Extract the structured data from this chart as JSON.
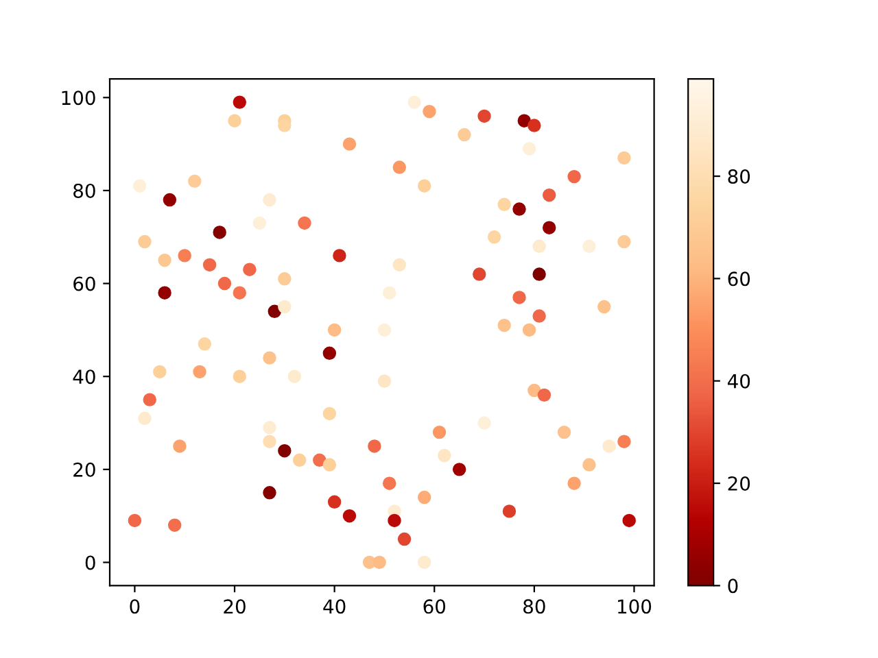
{
  "chart_data": {
    "type": "scatter",
    "marker": "circle",
    "x": [
      21,
      20,
      30,
      30,
      43,
      56,
      59,
      70,
      78,
      80,
      66,
      79,
      98,
      1,
      12,
      7,
      27,
      25,
      34,
      17,
      2,
      6,
      10,
      41,
      15,
      23,
      18,
      21,
      6,
      30,
      28,
      30,
      40,
      53,
      58,
      88,
      83,
      74,
      77,
      83,
      72,
      81,
      91,
      98,
      53,
      69,
      81,
      51,
      77,
      94,
      81,
      50,
      74,
      79,
      39,
      14,
      27,
      5,
      13,
      21,
      32,
      3,
      2,
      39,
      27,
      27,
      9,
      30,
      33,
      37,
      39,
      48,
      27,
      40,
      43,
      0,
      8,
      47,
      49,
      50,
      80,
      82,
      70,
      61,
      86,
      62,
      95,
      98,
      91,
      65,
      51,
      88,
      58,
      52,
      52,
      75,
      99,
      54,
      58
    ],
    "values": [
      99,
      95,
      95,
      94,
      90,
      99,
      97,
      96,
      95,
      94,
      92,
      89,
      87,
      81,
      82,
      78,
      78,
      73,
      73,
      71,
      69,
      65,
      66,
      66,
      64,
      63,
      60,
      58,
      58,
      61,
      54,
      55,
      50,
      85,
      81,
      83,
      79,
      77,
      76,
      72,
      70,
      68,
      68,
      69,
      64,
      62,
      62,
      58,
      57,
      55,
      53,
      50,
      51,
      50,
      45,
      47,
      44,
      41,
      41,
      40,
      40,
      35,
      31,
      32,
      29,
      26,
      25,
      24,
      22,
      22,
      21,
      25,
      15,
      13,
      10,
      9,
      8,
      0,
      0,
      39,
      37,
      36,
      30,
      28,
      28,
      23,
      25,
      26,
      21,
      20,
      17,
      17,
      14,
      11,
      9,
      11,
      9,
      5,
      0
    ],
    "cvalues": [
      15,
      72,
      72,
      75,
      55,
      92,
      55,
      30,
      5,
      25,
      70,
      92,
      70,
      92,
      70,
      5,
      90,
      92,
      42,
      2,
      70,
      68,
      45,
      22,
      38,
      38,
      38,
      42,
      5,
      70,
      1,
      88,
      62,
      52,
      72,
      38,
      35,
      75,
      5,
      5,
      75,
      88,
      92,
      70,
      85,
      30,
      0,
      92,
      38,
      65,
      38,
      92,
      65,
      62,
      5,
      75,
      65,
      72,
      55,
      72,
      88,
      38,
      88,
      75,
      90,
      80,
      55,
      1,
      72,
      40,
      72,
      38,
      2,
      25,
      15,
      38,
      40,
      65,
      62,
      85,
      62,
      38,
      92,
      52,
      65,
      85,
      88,
      45,
      65,
      8,
      42,
      55,
      58,
      90,
      15,
      28,
      15,
      30,
      88
    ],
    "xlim": [
      -5,
      104
    ],
    "ylim": [
      -5,
      104
    ],
    "xticks": [
      0,
      20,
      40,
      60,
      80,
      100
    ],
    "yticks": [
      0,
      20,
      40,
      60,
      80,
      100
    ],
    "clim": [
      0,
      99
    ],
    "cticks": [
      0,
      20,
      40,
      60,
      80
    ]
  }
}
